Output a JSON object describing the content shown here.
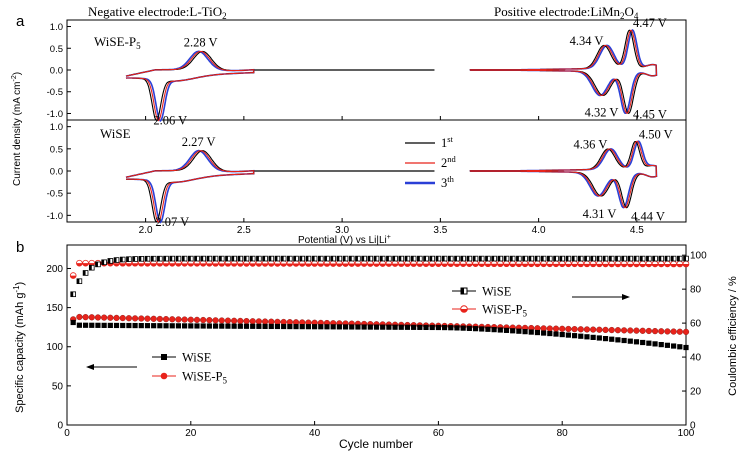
{
  "chart_data": [
    {
      "panel_label": "a",
      "type": "line",
      "title_left": "Negative electrode:L-TiO",
      "title_left_sub": "2",
      "title_right": "Positive electrode:LiMn",
      "title_right_sub1": "2",
      "title_right_mid": "O",
      "title_right_sub2": "4",
      "xlabel": "Potential (V) vs Li|Li",
      "xlabel_sup": "+",
      "ylabel": "Current density (mA cm",
      "ylabel_sup": "-2",
      "ylabel_end": ")",
      "xlim": [
        1.6,
        4.75
      ],
      "ylim": [
        -1.15,
        1.15
      ],
      "x_ticks": [
        "2.0",
        "2.5",
        "3.0",
        "3.5",
        "4.0",
        "4.5"
      ],
      "x_tick_values": [
        2.0,
        2.5,
        3.0,
        3.5,
        4.0,
        4.5
      ],
      "y_ticks": [
        "1.0",
        "0.5",
        "0.0",
        "-0.5",
        "-1.0"
      ],
      "y_tick_values": [
        1.0,
        0.5,
        0.0,
        -0.5,
        -1.0
      ],
      "subplots": [
        {
          "name": "WiSE-P",
          "name_sub": "5",
          "peaks": [
            {
              "label": "2.28 V",
              "x": 2.28,
              "y": 0.42
            },
            {
              "label": "2.06 V",
              "x": 2.06,
              "y": -0.93
            },
            {
              "label": "4.34 V",
              "x": 4.34,
              "y": 0.53
            },
            {
              "label": "4.47 V",
              "x": 4.47,
              "y": 0.87
            },
            {
              "label": "4.32 V",
              "x": 4.32,
              "y": -0.55
            },
            {
              "label": "4.45 V",
              "x": 4.45,
              "y": -0.95
            }
          ]
        },
        {
          "name": "WiSE",
          "name_sub": "",
          "peaks": [
            {
              "label": "2.27 V",
              "x": 2.27,
              "y": 0.45
            },
            {
              "label": "2.07 V",
              "x": 2.07,
              "y": -0.92
            },
            {
              "label": "4.36 V",
              "x": 4.36,
              "y": 0.46
            },
            {
              "label": "4.50 V",
              "x": 4.5,
              "y": 0.62
            },
            {
              "label": "4.31 V",
              "x": 4.31,
              "y": -0.53
            },
            {
              "label": "4.44 V",
              "x": 4.44,
              "y": -0.78
            }
          ]
        }
      ],
      "legend": [
        {
          "base": "1",
          "sup": "st",
          "color": "#000000"
        },
        {
          "base": "2",
          "sup": "nd",
          "color": "#e8231b"
        },
        {
          "base": "3",
          "sup": "th",
          "color": "#2a3fd6"
        }
      ]
    },
    {
      "panel_label": "b",
      "type": "scatter",
      "xlabel": "Cycle number",
      "ylabel_left": "Specific capacity (mAh g",
      "ylabel_left_sup": "-1",
      "ylabel_left_end": ")",
      "ylabel_right": "Coulombic efficiency / %",
      "xlim": [
        0,
        100
      ],
      "ylim_left": [
        0,
        230
      ],
      "ylim_right": [
        0,
        106
      ],
      "x_ticks": [
        "0",
        "20",
        "40",
        "60",
        "80",
        "100"
      ],
      "x_tick_values": [
        0,
        20,
        40,
        60,
        80,
        100
      ],
      "y_left_ticks": [
        "0",
        "50",
        "100",
        "150",
        "200"
      ],
      "y_left_tick_values": [
        0,
        50,
        100,
        150,
        200
      ],
      "y_right_ticks": [
        "0",
        "20",
        "40",
        "60",
        "80",
        "100"
      ],
      "y_right_tick_values": [
        0,
        20,
        40,
        60,
        80,
        100
      ],
      "series": [
        {
          "name": "WiSE",
          "axis": "left",
          "marker": "square",
          "capacity_start": 131,
          "capacity_end": 99
        },
        {
          "name": "WiSE-P",
          "name_sub": "5",
          "axis": "left",
          "marker": "circle",
          "capacity_start": 138,
          "capacity_end": 119
        },
        {
          "name": "WiSE",
          "axis": "right",
          "marker": "half-square",
          "efficiency_start": 77,
          "efficiency_end": 98
        },
        {
          "name": "WiSE-P",
          "name_sub": "5",
          "axis": "right",
          "marker": "half-circle",
          "efficiency_start": 88,
          "efficiency_end": 95
        }
      ],
      "legend_capacity": [
        {
          "name": "WiSE",
          "sub": ""
        },
        {
          "name": "WiSE-P",
          "sub": "5"
        }
      ],
      "legend_efficiency": [
        {
          "name": "WiSE",
          "sub": ""
        },
        {
          "name": "WiSE-P",
          "sub": "5"
        }
      ],
      "colors": {
        "wise": "#000000",
        "p5": "#e8231b"
      }
    }
  ]
}
